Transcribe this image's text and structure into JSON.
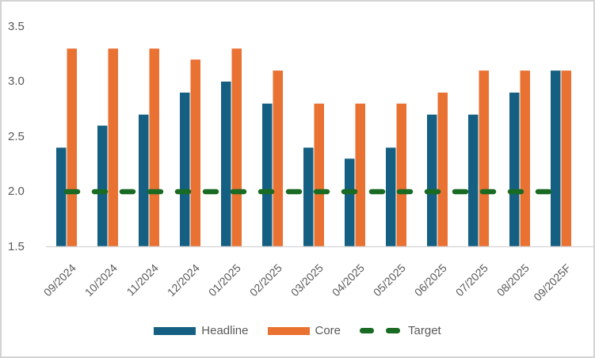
{
  "chart_data": {
    "type": "bar",
    "title": "",
    "xlabel": "",
    "ylabel": "",
    "categories": [
      "09/2024",
      "10/2024",
      "11/2024",
      "12/2024",
      "01/2025",
      "02/2025",
      "03/2025",
      "04/2025",
      "05/2025",
      "06/2025",
      "07/2025",
      "08/2025",
      "09/2025F"
    ],
    "series": [
      {
        "name": "Headline",
        "type": "bar",
        "color": "#156082",
        "values": [
          2.4,
          2.6,
          2.7,
          2.9,
          3.0,
          2.8,
          2.4,
          2.3,
          2.4,
          2.7,
          2.7,
          2.9,
          3.1
        ]
      },
      {
        "name": "Core",
        "type": "bar",
        "color": "#E97132",
        "values": [
          3.3,
          3.3,
          3.3,
          3.2,
          3.3,
          3.1,
          2.8,
          2.8,
          2.8,
          2.9,
          3.1,
          3.1,
          3.1
        ]
      },
      {
        "name": "Target",
        "type": "dashed-line",
        "color": "#196B24",
        "values": [
          2.0,
          2.0,
          2.0,
          2.0,
          2.0,
          2.0,
          2.0,
          2.0,
          2.0,
          2.0,
          2.0,
          2.0,
          2.0
        ]
      }
    ],
    "ylim": [
      1.5,
      3.5
    ],
    "ytick_step": 0.5,
    "yticks": [
      "3.5",
      "3.0",
      "2.5",
      "2.0",
      "1.5"
    ],
    "grid": false,
    "legend_position": "bottom",
    "x_tick_rotation": 45
  },
  "style": {
    "axis_line_color": "#D9D9D9",
    "label_color": "#595959",
    "frame_border_color": "#D3D3D3",
    "background": "#FFFFFF"
  }
}
